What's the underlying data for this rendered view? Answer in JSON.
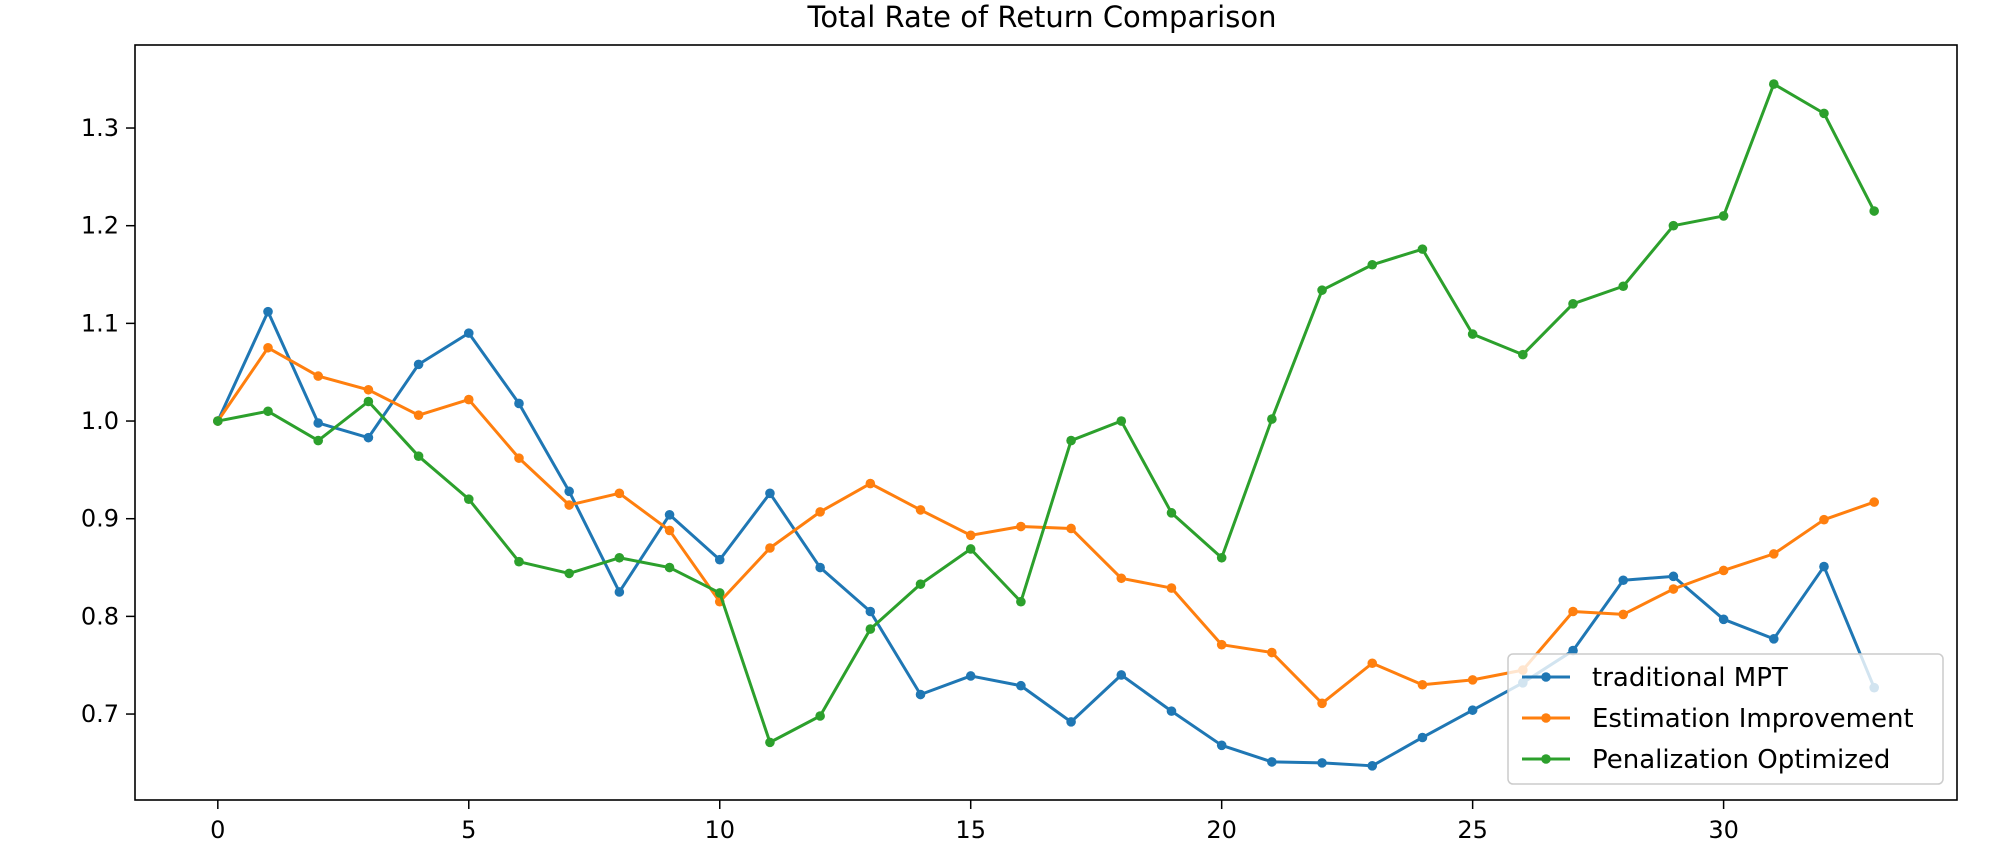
{
  "chart_data": {
    "type": "line",
    "title": "Total Rate of Return Comparison",
    "xlabel": "",
    "ylabel": "",
    "xlim": [
      -1.65,
      34.65
    ],
    "ylim": [
      0.612,
      1.385
    ],
    "xticks": [
      0,
      5,
      10,
      15,
      20,
      25,
      30
    ],
    "yticks": [
      0.7,
      0.8,
      0.9,
      1.0,
      1.1,
      1.2,
      1.3
    ],
    "ytick_labels": [
      "0.7",
      "0.8",
      "0.9",
      "1.0",
      "1.1",
      "1.2",
      "1.3"
    ],
    "grid": false,
    "legend_position": "lower-right",
    "x": [
      0,
      1,
      2,
      3,
      4,
      5,
      6,
      7,
      8,
      9,
      10,
      11,
      12,
      13,
      14,
      15,
      16,
      17,
      18,
      19,
      20,
      21,
      22,
      23,
      24,
      25,
      26,
      27,
      28,
      29,
      30,
      31,
      32,
      33
    ],
    "series": [
      {
        "name": "traditional MPT",
        "color": "#1f77b4",
        "values": [
          1.0,
          1.112,
          0.998,
          0.983,
          1.058,
          1.09,
          1.018,
          0.928,
          0.825,
          0.904,
          0.858,
          0.926,
          0.85,
          0.805,
          0.72,
          0.739,
          0.729,
          0.692,
          0.74,
          0.703,
          0.668,
          0.651,
          0.65,
          0.647,
          0.676,
          0.704,
          0.732,
          0.765,
          0.837,
          0.841,
          0.797,
          0.777,
          0.851,
          0.727
        ]
      },
      {
        "name": "Estimation Improvement",
        "color": "#ff7f0e",
        "values": [
          1.0,
          1.075,
          1.046,
          1.032,
          1.006,
          1.022,
          0.962,
          0.914,
          0.926,
          0.888,
          0.815,
          0.87,
          0.907,
          0.936,
          0.909,
          0.883,
          0.892,
          0.89,
          0.839,
          0.829,
          0.771,
          0.763,
          0.711,
          0.752,
          0.73,
          0.735,
          0.745,
          0.805,
          0.802,
          0.828,
          0.847,
          0.864,
          0.899,
          0.917
        ]
      },
      {
        "name": "Penalization Optimized",
        "color": "#2ca02c",
        "values": [
          1.0,
          1.01,
          0.98,
          1.02,
          0.964,
          0.92,
          0.856,
          0.844,
          0.86,
          0.85,
          0.824,
          0.671,
          0.698,
          0.787,
          0.833,
          0.869,
          0.815,
          0.98,
          1.0,
          0.906,
          0.86,
          1.002,
          1.134,
          1.16,
          1.176,
          1.089,
          1.068,
          1.12,
          1.138,
          1.2,
          1.21,
          1.345,
          1.315,
          1.215
        ]
      }
    ]
  }
}
